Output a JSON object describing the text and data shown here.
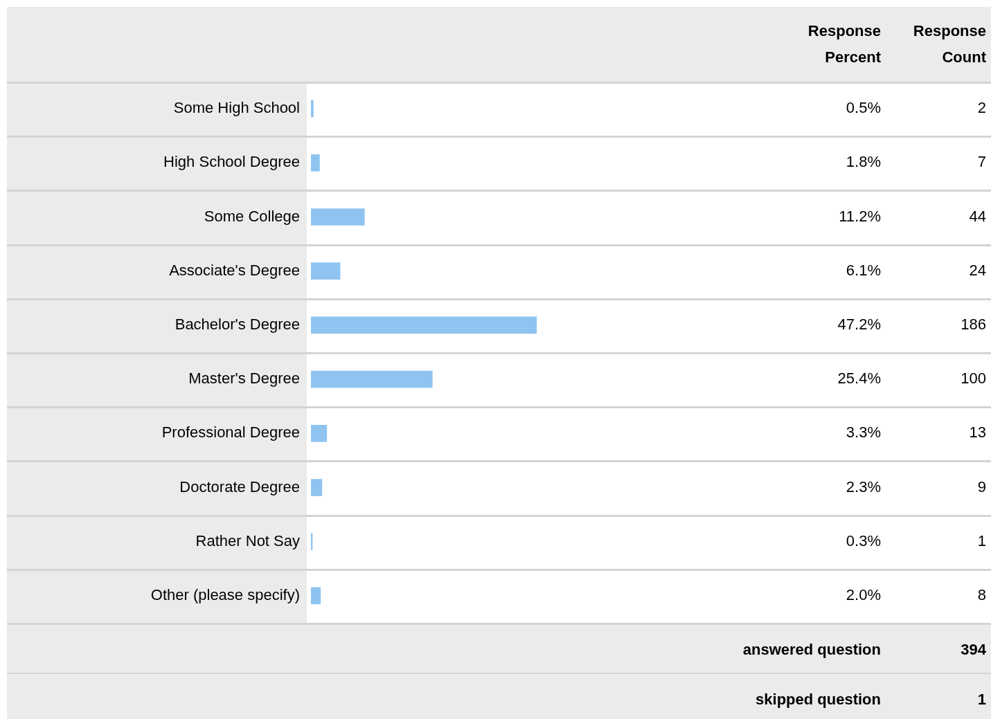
{
  "chart_data": {
    "type": "bar",
    "orientation": "horizontal",
    "tick_labels": "y",
    "color": "#8fc4f0",
    "categories": [
      "Some High School",
      "High School Degree",
      "Some College",
      "Associate's Degree",
      "Bachelor's Degree",
      "Master's Degree",
      "Professional Degree",
      "Doctorate Degree",
      "Rather Not Say",
      "Other (please specify)"
    ],
    "values": [
      0.5,
      1.8,
      11.2,
      6.1,
      47.2,
      25.4,
      3.3,
      2.3,
      0.3,
      2.0
    ],
    "value_labels": [
      "0.5%",
      "1.8%",
      "11.2%",
      "6.1%",
      "47.2%",
      "25.4%",
      "3.3%",
      "2.3%",
      "0.3%",
      "2.0%"
    ],
    "annotations": [
      "Response Percent",
      "Response Count",
      "2",
      "7",
      "44",
      "24",
      "186",
      "100",
      "13",
      "9",
      "1",
      "8",
      "answered question",
      "394",
      "skipped question",
      "1"
    ]
  }
}
